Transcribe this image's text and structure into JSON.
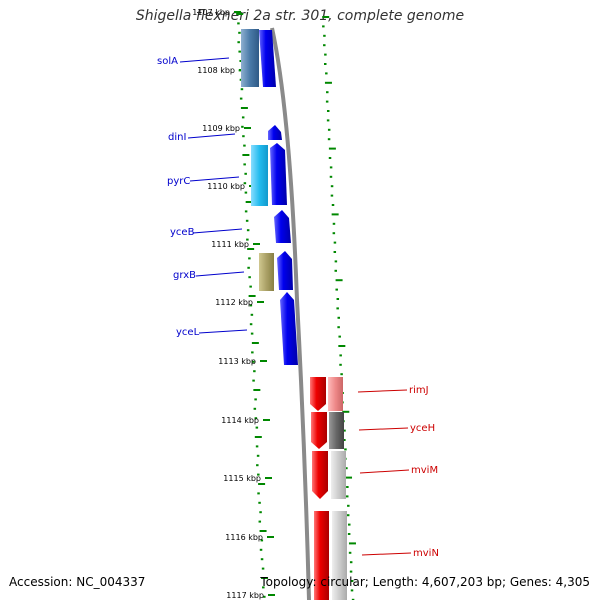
{
  "title": "Shigella flexneri 2a str. 301, complete genome",
  "footer": {
    "accession": "Accession: NC_004337",
    "topology": "Topology: circular; Length: 4,607,203 bp; Genes: 4,305"
  },
  "scale": {
    "ticks": [
      "1107 kbp",
      "1108 kbp",
      "1109 kbp",
      "1110 kbp",
      "1111 kbp",
      "1112 kbp",
      "1113 kbp",
      "1114 kbp",
      "1115 kbp",
      "1116 kbp",
      "1117 kbp"
    ]
  },
  "genes_forward": [
    {
      "label": "solA",
      "color": "#0000cc"
    },
    {
      "label": "dinI",
      "color": "#0000cc"
    },
    {
      "label": "pyrC",
      "color": "#0000cc"
    },
    {
      "label": "yceB",
      "color": "#0000cc"
    },
    {
      "label": "grxB",
      "color": "#0000cc"
    },
    {
      "label": "yceL",
      "color": "#0000cc"
    }
  ],
  "genes_reverse": [
    {
      "label": "rimJ",
      "color": "#cc0000"
    },
    {
      "label": "yceH",
      "color": "#cc0000"
    },
    {
      "label": "mviM",
      "color": "#cc0000"
    },
    {
      "label": "mviN",
      "color": "#cc0000"
    }
  ],
  "colors": {
    "forward_gene": "#0000ee",
    "reverse_gene": "#ee0000",
    "backbone": "#808080",
    "gc_ticks": "#008800",
    "cog_light_blue": "#33bbee",
    "cog_steel_blue": "#4a7aa8",
    "cog_khaki": "#aaa066",
    "cog_pink": "#ee8888",
    "cog_dark_grey": "#666666",
    "cog_light_grey": "#cccccc"
  }
}
